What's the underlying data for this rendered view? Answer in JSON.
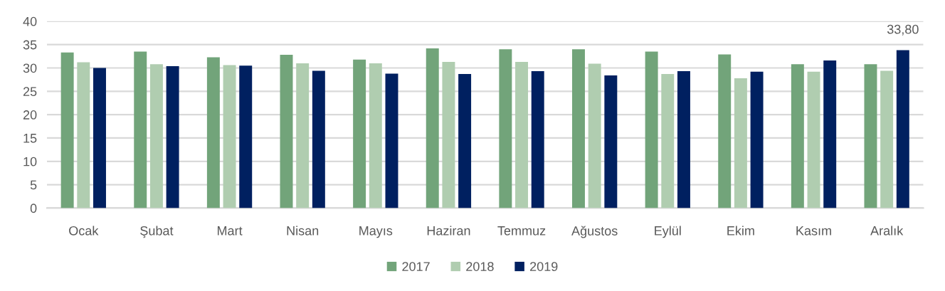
{
  "chart_data": {
    "type": "bar",
    "categories": [
      "Ocak",
      "Şubat",
      "Mart",
      "Nisan",
      "Mayıs",
      "Haziran",
      "Temmuz",
      "Ağustos",
      "Eylül",
      "Ekim",
      "Kasım",
      "Aralık"
    ],
    "series": [
      {
        "name": "2017",
        "color": "#72a47a",
        "values": [
          33.3,
          33.5,
          32.3,
          32.8,
          31.8,
          34.2,
          34.0,
          34.0,
          33.5,
          32.9,
          30.8,
          30.8
        ]
      },
      {
        "name": "2018",
        "color": "#b0cdb0",
        "values": [
          31.2,
          30.8,
          30.6,
          31.0,
          31.0,
          31.3,
          31.3,
          30.9,
          28.7,
          27.8,
          29.2,
          29.4
        ]
      },
      {
        "name": "2019",
        "color": "#002060",
        "values": [
          30.0,
          30.4,
          30.5,
          29.4,
          28.8,
          28.7,
          29.3,
          28.4,
          29.3,
          29.2,
          31.6,
          33.8
        ],
        "value_labels": [
          null,
          null,
          null,
          null,
          null,
          null,
          null,
          null,
          null,
          null,
          null,
          "33,80"
        ]
      }
    ],
    "ylim": [
      0,
      40
    ],
    "yticks": [
      0,
      5,
      10,
      15,
      20,
      25,
      30,
      35,
      40
    ],
    "grid": "y",
    "legend": "bottom"
  }
}
